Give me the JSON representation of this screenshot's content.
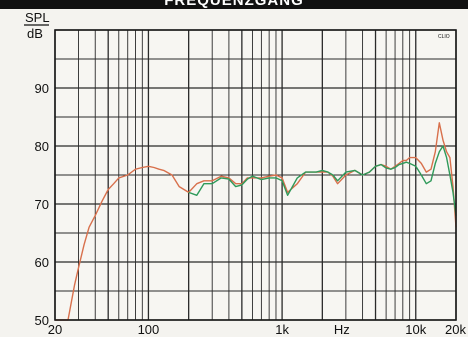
{
  "header": {
    "title": "FREQUENZGANG"
  },
  "chart_data": {
    "type": "line",
    "title": "FREQUENZGANG",
    "ylabel": [
      "SPL",
      "dB"
    ],
    "xlabel": "Hz",
    "xscale": "log",
    "xlim": [
      20,
      20000
    ],
    "ylim": [
      50,
      100
    ],
    "y_ticks": [
      50,
      60,
      70,
      80,
      90
    ],
    "x_tick_labels": [
      {
        "value": 20,
        "label": "20"
      },
      {
        "value": 100,
        "label": "100"
      },
      {
        "value": 1000,
        "label": "1k"
      },
      {
        "value": 2800,
        "label": "Hz"
      },
      {
        "value": 10000,
        "label": "10k"
      },
      {
        "value": 20000,
        "label": "20k"
      }
    ],
    "grid": true,
    "corner_label": "CLIO",
    "colors": {
      "red": "#d8704c",
      "green": "#2f9a5a",
      "grid": "#2a2a2a",
      "border": "#1a1a1a"
    },
    "series": [
      {
        "color": "red",
        "x": [
          20,
          25,
          28,
          30,
          33,
          36,
          40,
          45,
          50,
          55,
          60,
          70,
          80,
          90,
          100,
          110,
          120,
          130,
          150,
          170,
          200,
          230,
          260,
          300,
          350,
          400,
          450,
          500,
          550,
          600,
          700,
          800,
          900,
          1000,
          1100,
          1300,
          1500,
          1800,
          2000,
          2200,
          2400,
          2600,
          3000,
          3500,
          4000,
          4500,
          5000,
          5500,
          6000,
          6500,
          7000,
          7500,
          8000,
          8500,
          9000,
          10000,
          11000,
          12000,
          13000,
          14000,
          15000,
          16000,
          17000,
          18000,
          19000,
          20000
        ],
        "y": [
          50,
          50,
          56,
          59,
          63,
          66,
          68,
          70.5,
          72.5,
          73.5,
          74.5,
          75,
          76,
          76.3,
          76.5,
          76.3,
          76,
          75.8,
          75,
          73,
          72,
          73.5,
          74,
          74,
          74.8,
          74.5,
          73.5,
          73.5,
          74.5,
          74.5,
          74.5,
          74.8,
          75,
          74.5,
          72,
          73.5,
          75.5,
          75.5,
          75.5,
          75.5,
          74.8,
          73.5,
          75,
          75.8,
          75,
          75.5,
          76.5,
          76.8,
          76.5,
          76,
          76.5,
          77,
          77.5,
          77.5,
          78,
          78,
          77,
          75.5,
          76,
          79,
          84,
          81,
          79,
          78,
          73,
          66
        ]
      },
      {
        "color": "green",
        "x": [
          200,
          230,
          260,
          300,
          350,
          400,
          450,
          500,
          550,
          600,
          700,
          800,
          900,
          1000,
          1100,
          1300,
          1500,
          1800,
          2000,
          2200,
          2400,
          2600,
          3000,
          3500,
          4000,
          4500,
          5000,
          5500,
          6000,
          6500,
          7000,
          7500,
          8000,
          8500,
          9000,
          10000,
          11000,
          12000,
          13000,
          14000,
          15000,
          16000,
          17000,
          18000,
          19000,
          20000
        ],
        "y": [
          72,
          71.5,
          73.5,
          73.5,
          74.5,
          74.3,
          73,
          73.3,
          74.3,
          74.8,
          74.2,
          74.5,
          74.5,
          74,
          71.5,
          74.5,
          75.5,
          75.5,
          75.8,
          75.5,
          75,
          74,
          75.5,
          75.8,
          75,
          75.5,
          76.5,
          76.8,
          76.2,
          76,
          76.3,
          76.8,
          77,
          77.2,
          77,
          76.5,
          75,
          73.5,
          74,
          77,
          79,
          80,
          78,
          75,
          72,
          68
        ]
      }
    ]
  }
}
